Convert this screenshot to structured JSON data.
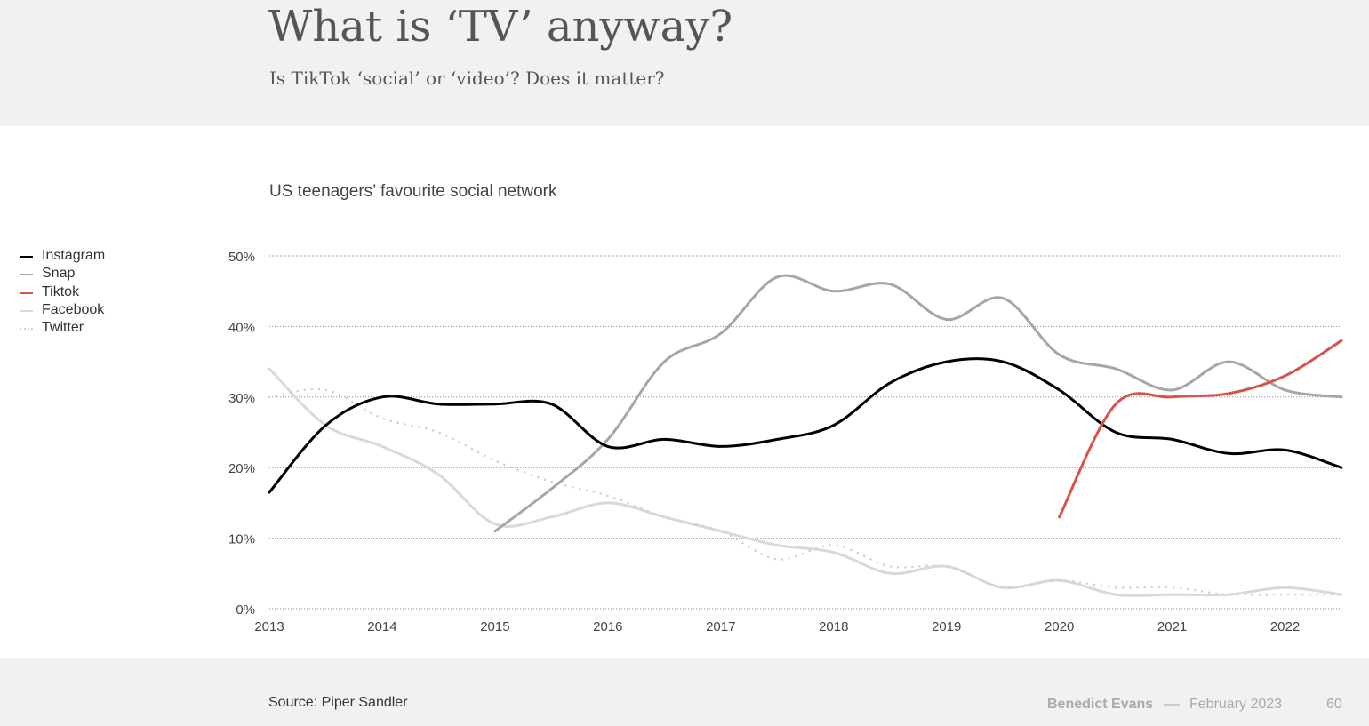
{
  "header": {
    "title": "What is ‘TV’ anyway?",
    "subtitle": "Is TikTok ‘social’ or ‘video’? Does it matter?"
  },
  "chart_data": {
    "type": "line",
    "title": "US teenagers’ favourite social network",
    "xlabel": "",
    "ylabel": "",
    "xlim": [
      2013,
      2022.5
    ],
    "ylim": [
      0,
      50
    ],
    "x_ticks": [
      "2013",
      "2014",
      "2015",
      "2016",
      "2017",
      "2018",
      "2019",
      "2020",
      "2021",
      "2022"
    ],
    "y_ticks": [
      "0%",
      "10%",
      "20%",
      "30%",
      "40%",
      "50%"
    ],
    "y_tick_values": [
      0,
      10,
      20,
      30,
      40,
      50
    ],
    "grid": true,
    "legend_position": "left",
    "x": [
      2013,
      2013.5,
      2014,
      2014.5,
      2015,
      2015.5,
      2016,
      2016.5,
      2017,
      2017.5,
      2018,
      2018.5,
      2019,
      2019.5,
      2020,
      2020.5,
      2021,
      2021.5,
      2022,
      2022.5
    ],
    "series": [
      {
        "name": "Instagram",
        "color": "#000000",
        "style": "solid",
        "values": [
          16.5,
          26,
          30,
          29,
          29,
          29,
          23,
          24,
          23,
          24,
          26,
          32,
          35,
          35,
          31,
          25,
          24,
          22,
          22.5,
          20
        ]
      },
      {
        "name": "Snap",
        "color": "#a6a6a6",
        "style": "solid",
        "values": [
          null,
          null,
          null,
          null,
          11,
          17,
          24,
          35,
          39,
          47,
          45,
          46,
          41,
          44,
          36,
          34,
          31,
          35,
          31,
          30
        ]
      },
      {
        "name": "Tiktok",
        "color": "#d9534a",
        "style": "solid",
        "values": [
          null,
          null,
          null,
          null,
          null,
          null,
          null,
          null,
          null,
          null,
          null,
          null,
          null,
          null,
          13,
          29,
          30,
          30.5,
          33,
          38
        ]
      },
      {
        "name": "Facebook",
        "color": "#d9d9d9",
        "style": "solid",
        "values": [
          34,
          26,
          23,
          19,
          12,
          13,
          15,
          13,
          11,
          9,
          8,
          5,
          6,
          3,
          4,
          2,
          2,
          2,
          3,
          2
        ]
      },
      {
        "name": "Twitter",
        "color": "#d0d0d0",
        "style": "dotted",
        "values": [
          30,
          31,
          27,
          25,
          21,
          18,
          16,
          13,
          11,
          7,
          9,
          6,
          6,
          3,
          4,
          3,
          3,
          2,
          2,
          2
        ]
      }
    ]
  },
  "footer": {
    "source": "Source: Piper Sandler",
    "brand": "Benedict Evans",
    "separator": "––",
    "date": "February 2023",
    "page": "60"
  }
}
